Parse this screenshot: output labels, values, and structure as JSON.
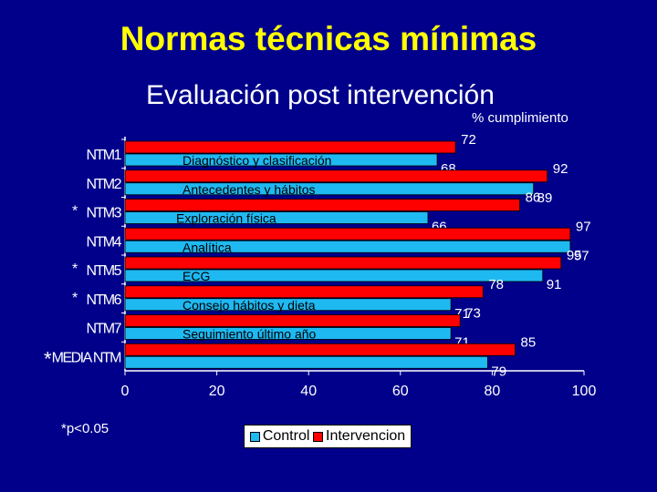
{
  "slide": {
    "title": "Normas técnicas mínimas",
    "subtitle": "Evaluación post intervención",
    "unit_label": "% cumplimiento",
    "footnote": "*p<0.05"
  },
  "colors": {
    "control": "#1fb9f2",
    "intervention": "#ff0000",
    "text": "#ffffff",
    "title": "#ffff00",
    "background": "#00008b"
  },
  "chart_data": {
    "type": "bar",
    "orientation": "horizontal",
    "title": "Evaluación post intervención",
    "xlabel": "% cumplimiento",
    "xlim": [
      0,
      100
    ],
    "x_ticks": [
      0,
      20,
      40,
      60,
      80,
      100
    ],
    "categories": [
      "NTM1",
      "NTM2",
      "NTM3",
      "NTM4",
      "NTM5",
      "NTM6",
      "NTM7",
      "MEDIA NTM"
    ],
    "significance_markers": [
      "",
      "",
      "*",
      "",
      "*",
      "*",
      "",
      "*"
    ],
    "bar_labels": [
      "Diagnóstico y clasificación",
      "Antecedentes y hábitos",
      "Exploración física",
      "Analítica",
      "ECG",
      "Consejo hábitos y dieta",
      "Seguimiento último año",
      ""
    ],
    "series": [
      {
        "name": "Intervencion",
        "values": [
          72,
          92,
          86,
          97,
          95,
          78,
          73,
          85
        ]
      },
      {
        "name": "Control",
        "values": [
          68,
          89,
          66,
          97,
          91,
          71,
          71,
          79
        ]
      }
    ],
    "legend": {
      "position": "bottom",
      "entries": [
        "Control",
        "Intervencion"
      ]
    }
  }
}
